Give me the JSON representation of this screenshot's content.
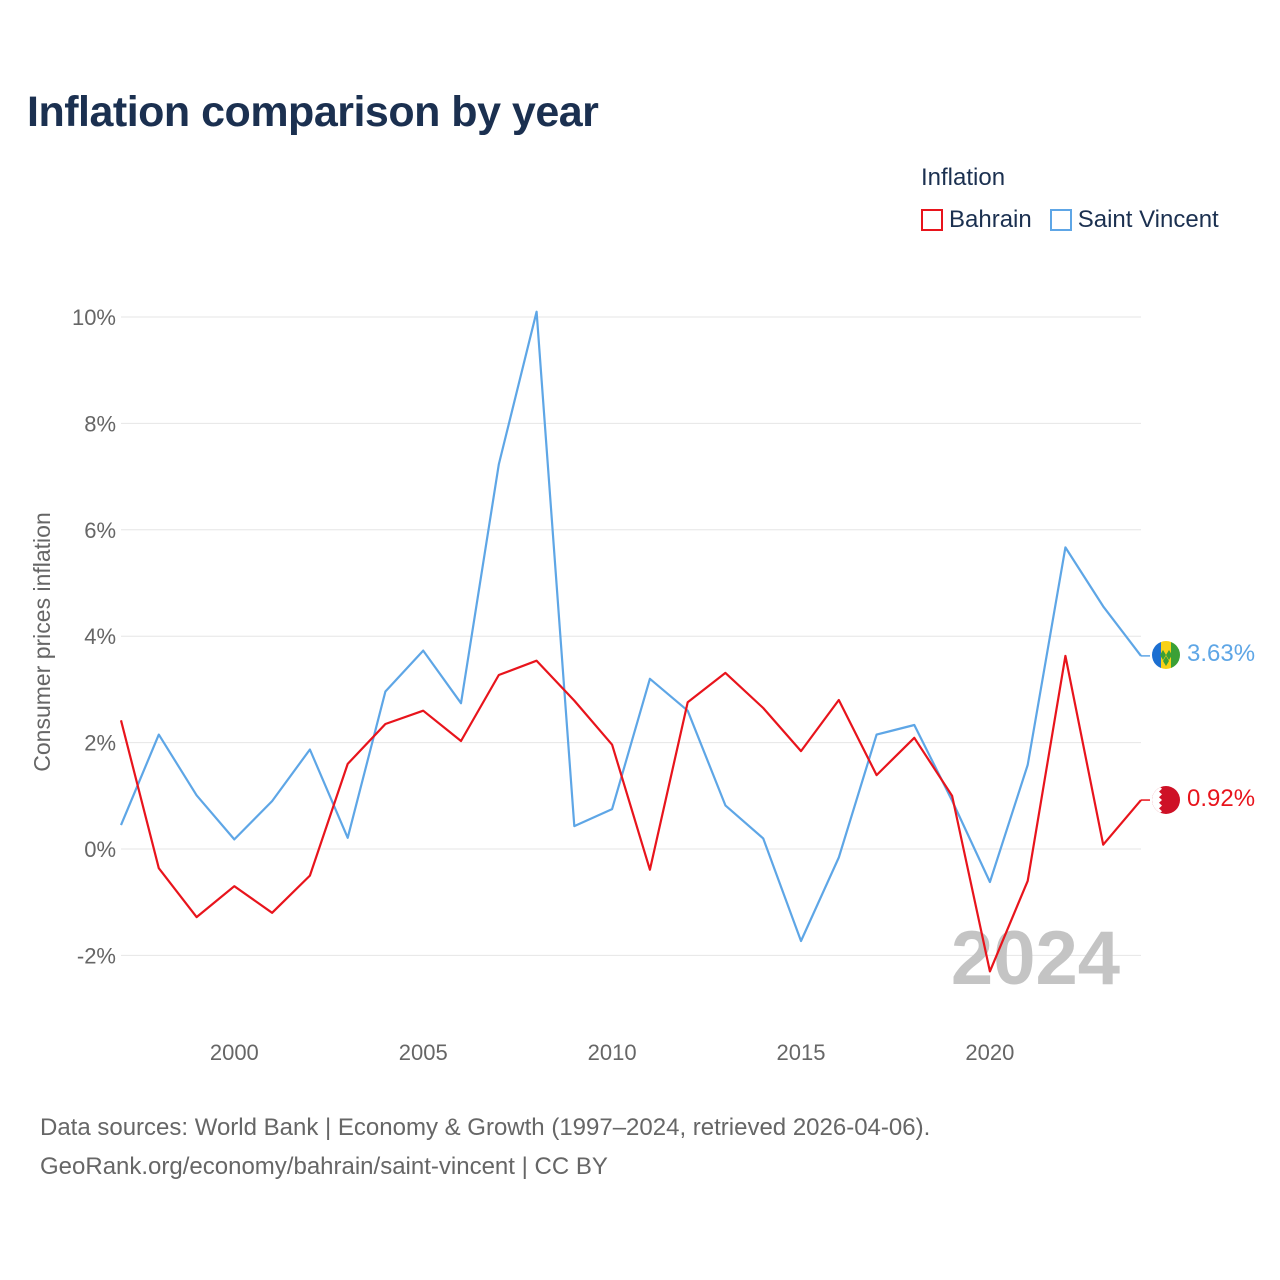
{
  "title": "Inflation comparison by year",
  "legend": {
    "title": "Inflation",
    "items": [
      {
        "label": "Bahrain",
        "color": "#e8141c"
      },
      {
        "label": "Saint Vincent",
        "color": "#5ea6e6"
      }
    ]
  },
  "footer": {
    "line1": "Data sources: World Bank | Economy & Growth (1997–2024, retrieved 2026-04-06).",
    "line2": "GeoRank.org/economy/bahrain/saint-vincent | CC BY"
  },
  "chart_data": {
    "type": "line",
    "title": "Inflation comparison by year",
    "xlabel": "",
    "ylabel": "Consumer prices inflation",
    "xlim": [
      1997,
      2024
    ],
    "ylim": [
      -3,
      10
    ],
    "x_ticks": [
      2000,
      2005,
      2010,
      2015,
      2020
    ],
    "x_tick_labels": [
      "2000",
      "2005",
      "2010",
      "2015",
      "2020"
    ],
    "y_ticks": [
      -2,
      0,
      2,
      4,
      6,
      8,
      10
    ],
    "y_tick_labels": [
      "-2%",
      "0%",
      "2%",
      "4%",
      "6%",
      "8%",
      "10%"
    ],
    "grid": true,
    "legend_position": "top-right",
    "watermark": "2024",
    "x": [
      1997,
      1998,
      1999,
      2000,
      2001,
      2002,
      2003,
      2004,
      2005,
      2006,
      2007,
      2008,
      2009,
      2010,
      2011,
      2012,
      2013,
      2014,
      2015,
      2016,
      2017,
      2018,
      2019,
      2020,
      2021,
      2022,
      2023,
      2024
    ],
    "series": [
      {
        "name": "Bahrain",
        "color": "#e8141c",
        "end_label": "0.92%",
        "values": [
          2.42,
          -0.36,
          -1.28,
          -0.7,
          -1.2,
          -0.5,
          1.6,
          2.35,
          2.6,
          2.03,
          3.27,
          3.54,
          2.79,
          1.96,
          -0.39,
          2.76,
          3.31,
          2.65,
          1.84,
          2.8,
          1.39,
          2.09,
          1.0,
          -2.3,
          -0.6,
          3.63,
          0.08,
          0.92
        ]
      },
      {
        "name": "Saint Vincent",
        "color": "#5ea6e6",
        "end_label": "3.63%",
        "values": [
          0.45,
          2.15,
          1.01,
          0.18,
          0.9,
          1.87,
          0.21,
          2.96,
          3.73,
          2.74,
          7.23,
          10.1,
          0.43,
          0.75,
          3.2,
          2.6,
          0.82,
          0.2,
          -1.73,
          -0.16,
          2.15,
          2.33,
          0.91,
          -0.62,
          1.58,
          5.67,
          4.56,
          3.63
        ]
      }
    ]
  }
}
